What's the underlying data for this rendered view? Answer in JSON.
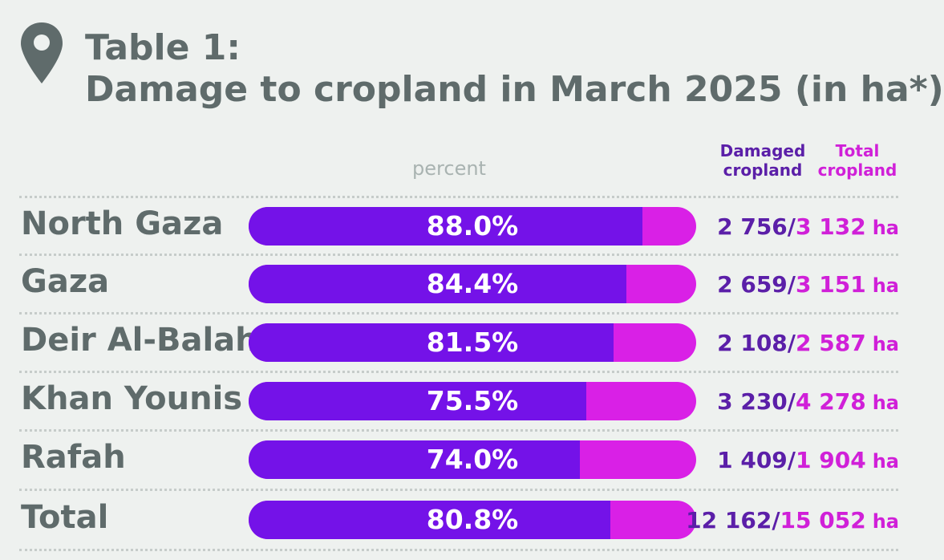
{
  "header": {
    "title_line1": "Table 1:",
    "title_line2": "Damage to cropland in March 2025 (in ha*)"
  },
  "columns": {
    "percent": "percent",
    "damaged": [
      "Damaged",
      "cropland"
    ],
    "total": [
      "Total",
      "cropland"
    ]
  },
  "chart_data": {
    "type": "bar",
    "title": "Damage to cropland in March 2025 (in ha*)",
    "unit": "ha",
    "categories": [
      "North Gaza",
      "Gaza",
      "Deir Al-Balah",
      "Khan Younis",
      "Rafah",
      "Total"
    ],
    "percent_labels": [
      "88.0%",
      "84.4%",
      "81.5%",
      "75.5%",
      "74.0%",
      "80.8%"
    ],
    "percent": [
      88.0,
      84.4,
      81.5,
      75.5,
      74.0,
      80.8
    ],
    "damaged_labels": [
      "2 756",
      "2 659",
      "2 108",
      "3 230",
      "1 409",
      "12 162"
    ],
    "damaged": [
      2756,
      2659,
      2108,
      3230,
      1409,
      12162
    ],
    "total_labels": [
      "3 132",
      "3 151",
      "2 587",
      "4 278",
      "1 904",
      "15 052"
    ],
    "total": [
      3132,
      3151,
      2587,
      4278,
      1904,
      15052
    ],
    "series": [
      {
        "name": "Damaged cropland",
        "values": [
          2756,
          2659,
          2108,
          3230,
          1409,
          12162
        ]
      },
      {
        "name": "Total cropland",
        "values": [
          3132,
          3151,
          2587,
          4278,
          1904,
          15052
        ]
      }
    ]
  },
  "colors": {
    "damaged": "#7412e8",
    "total": "#d920e6",
    "title": "#5f6b6b",
    "background": "#eef1ef"
  },
  "icons": {
    "header": "map-pin-icon"
  }
}
